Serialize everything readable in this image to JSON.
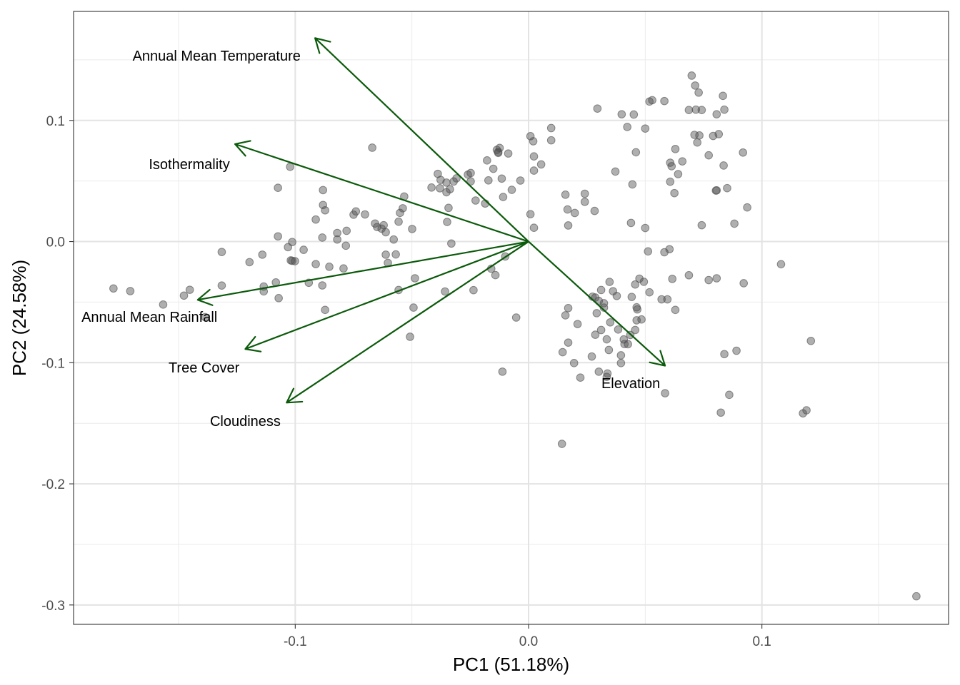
{
  "chart_data": {
    "type": "scatter",
    "title": "",
    "xlabel": "PC1 (51.18%)",
    "ylabel": "PC2 (24.58%)",
    "xlim": [
      -0.195,
      0.18
    ],
    "ylim": [
      -0.316,
      0.19
    ],
    "x_ticks": [
      {
        "value": -0.1,
        "label": "-0.1"
      },
      {
        "value": 0.0,
        "label": "0.0"
      },
      {
        "value": 0.1,
        "label": "0.1"
      }
    ],
    "y_ticks": [
      {
        "value": 0.1,
        "label": "0.1"
      },
      {
        "value": 0.0,
        "label": "0.0"
      },
      {
        "value": -0.1,
        "label": "-0.1"
      },
      {
        "value": -0.2,
        "label": "-0.2"
      },
      {
        "value": -0.3,
        "label": "-0.3"
      }
    ],
    "grid": true,
    "point_color": "#4d4d4d",
    "arrow_color": "#0b5a0b",
    "arrows": [
      {
        "name": "Annual Mean Temperature",
        "x": -0.0915,
        "y": 0.168,
        "label_x": -0.1337,
        "label_y": 0.1535
      },
      {
        "name": "Isothermality",
        "x": -0.1258,
        "y": 0.0805,
        "label_x": -0.1454,
        "label_y": 0.064
      },
      {
        "name": "Annual Mean Rainfall",
        "x": -0.1418,
        "y": -0.0481,
        "label_x": -0.1625,
        "label_y": -0.062
      },
      {
        "name": "Tree Cover",
        "x": -0.1214,
        "y": -0.0887,
        "label_x": -0.1391,
        "label_y": -0.104
      },
      {
        "name": "Cloudiness",
        "x": -0.1037,
        "y": -0.133,
        "label_x": -0.1214,
        "label_y": -0.148
      },
      {
        "name": "Elevation",
        "x": 0.0585,
        "y": -0.1025,
        "label_x": 0.0438,
        "label_y": -0.117
      }
    ],
    "points": [
      [
        -0.1779,
        -0.0387
      ],
      [
        -0.1707,
        -0.0409
      ],
      [
        -0.1566,
        -0.052
      ],
      [
        -0.1477,
        -0.0446
      ],
      [
        -0.1452,
        -0.0398
      ],
      [
        -0.1386,
        -0.0624
      ],
      [
        -0.1315,
        -0.0086
      ],
      [
        -0.1315,
        -0.0363
      ],
      [
        -0.1196,
        -0.017
      ],
      [
        -0.1141,
        -0.0108
      ],
      [
        -0.1135,
        -0.0371
      ],
      [
        -0.1135,
        -0.0411
      ],
      [
        -0.1083,
        -0.0337
      ],
      [
        -0.1074,
        0.0043
      ],
      [
        -0.1074,
        0.0444
      ],
      [
        -0.1071,
        -0.0467
      ],
      [
        -0.1031,
        -0.0046
      ],
      [
        -0.1022,
        0.0617
      ],
      [
        -0.1019,
        -0.0155
      ],
      [
        -0.1013,
        -0.0004
      ],
      [
        -0.1013,
        -0.0159
      ],
      [
        -0.1001,
        -0.0162
      ],
      [
        -0.0964,
        -0.0068
      ],
      [
        -0.0942,
        -0.034
      ],
      [
        -0.0912,
        -0.0186
      ],
      [
        -0.0912,
        0.0182
      ],
      [
        -0.0884,
        -0.0362
      ],
      [
        -0.0884,
        0.0033
      ],
      [
        -0.0881,
        0.0302
      ],
      [
        -0.0881,
        0.0425
      ],
      [
        -0.0872,
        -0.0564
      ],
      [
        -0.0872,
        0.0258
      ],
      [
        -0.0854,
        -0.0208
      ],
      [
        -0.082,
        0.0017
      ],
      [
        -0.082,
        0.0071
      ],
      [
        -0.0793,
        -0.0222
      ],
      [
        -0.0783,
        -0.0034
      ],
      [
        -0.078,
        0.0089
      ],
      [
        -0.075,
        0.0222
      ],
      [
        -0.074,
        0.0249
      ],
      [
        -0.0701,
        0.0224
      ],
      [
        -0.067,
        0.0775
      ],
      [
        -0.0658,
        0.0149
      ],
      [
        -0.0649,
        0.012
      ],
      [
        -0.063,
        0.0107
      ],
      [
        -0.0621,
        0.0135
      ],
      [
        -0.0612,
        -0.0108
      ],
      [
        -0.0612,
        0.0077
      ],
      [
        -0.0603,
        -0.0176
      ],
      [
        -0.0578,
        0.0017
      ],
      [
        -0.0569,
        -0.0106
      ],
      [
        -0.0557,
        0.0164
      ],
      [
        -0.0557,
        -0.04
      ],
      [
        -0.0551,
        0.0237
      ],
      [
        -0.0539,
        0.0275
      ],
      [
        -0.0533,
        0.0372
      ],
      [
        -0.0508,
        -0.0786
      ],
      [
        -0.0499,
        0.0104
      ],
      [
        -0.0493,
        -0.0545
      ],
      [
        -0.0487,
        -0.0303
      ],
      [
        -0.0416,
        0.0446
      ],
      [
        -0.0389,
        0.0559
      ],
      [
        -0.038,
        0.044
      ],
      [
        -0.0377,
        0.0509
      ],
      [
        -0.0358,
        -0.0412
      ],
      [
        -0.0352,
        0.0487
      ],
      [
        -0.0352,
        0.0407
      ],
      [
        -0.0349,
        0.0162
      ],
      [
        -0.0343,
        0.0278
      ],
      [
        -0.0337,
        0.0432
      ],
      [
        -0.0331,
        -0.0016
      ],
      [
        -0.0321,
        0.0496
      ],
      [
        -0.0309,
        0.0522
      ],
      [
        -0.026,
        0.0553
      ],
      [
        -0.0248,
        0.0566
      ],
      [
        -0.0248,
        0.0497
      ],
      [
        -0.0236,
        -0.0401
      ],
      [
        -0.0227,
        0.0339
      ],
      [
        -0.0186,
        0.0314
      ],
      [
        -0.0178,
        0.067
      ],
      [
        -0.0172,
        0.0505
      ],
      [
        -0.016,
        -0.0224
      ],
      [
        -0.0151,
        0.0601
      ],
      [
        -0.0142,
        -0.0277
      ],
      [
        -0.0136,
        0.0757
      ],
      [
        -0.013,
        0.074
      ],
      [
        -0.013,
        0.0732
      ],
      [
        -0.0124,
        0.0773
      ],
      [
        -0.0115,
        0.052
      ],
      [
        -0.0112,
        -0.1074
      ],
      [
        -0.0109,
        0.0368
      ],
      [
        -0.01,
        -0.0123
      ],
      [
        -0.0087,
        0.0727
      ],
      [
        -0.0072,
        0.0427
      ],
      [
        -0.0053,
        -0.0627
      ],
      [
        -0.0035,
        0.0504
      ],
      [
        0.0008,
        0.087
      ],
      [
        0.0008,
        0.0226
      ],
      [
        0.002,
        0.0828
      ],
      [
        0.0023,
        0.0114
      ],
      [
        0.0023,
        0.0703
      ],
      [
        0.0023,
        0.0586
      ],
      [
        0.0054,
        0.0637
      ],
      [
        0.0097,
        0.0836
      ],
      [
        0.0097,
        0.0937
      ],
      [
        0.0143,
        -0.167
      ],
      [
        0.0146,
        -0.0913
      ],
      [
        0.0158,
        -0.0609
      ],
      [
        0.0158,
        0.0387
      ],
      [
        0.0167,
        0.0265
      ],
      [
        0.017,
        0.0133
      ],
      [
        0.017,
        -0.0834
      ],
      [
        0.017,
        -0.0549
      ],
      [
        0.0195,
        -0.1003
      ],
      [
        0.0198,
        0.0236
      ],
      [
        0.021,
        -0.0681
      ],
      [
        0.0222,
        -0.1123
      ],
      [
        0.0241,
        0.0328
      ],
      [
        0.0241,
        0.0395
      ],
      [
        0.0271,
        -0.0949
      ],
      [
        0.0274,
        -0.0455
      ],
      [
        0.0283,
        0.0253
      ],
      [
        0.0286,
        -0.0769
      ],
      [
        0.0286,
        -0.0462
      ],
      [
        0.0292,
        -0.0591
      ],
      [
        0.0295,
        0.1098
      ],
      [
        0.0301,
        -0.049
      ],
      [
        0.0301,
        -0.1074
      ],
      [
        0.0311,
        -0.073
      ],
      [
        0.0311,
        -0.04
      ],
      [
        0.0323,
        -0.0509
      ],
      [
        0.0323,
        -0.0545
      ],
      [
        0.0335,
        -0.0807
      ],
      [
        0.0335,
        -0.1117
      ],
      [
        0.0338,
        -0.1089
      ],
      [
        0.0344,
        -0.0895
      ],
      [
        0.0347,
        -0.0333
      ],
      [
        0.035,
        -0.0667
      ],
      [
        0.0362,
        -0.041
      ],
      [
        0.0372,
        0.0578
      ],
      [
        0.0378,
        -0.0449
      ],
      [
        0.0384,
        -0.0726
      ],
      [
        0.0396,
        -0.1003
      ],
      [
        0.0396,
        -0.0939
      ],
      [
        0.0399,
        0.1051
      ],
      [
        0.0408,
        -0.0808
      ],
      [
        0.0411,
        -0.0846
      ],
      [
        0.0423,
        0.0946
      ],
      [
        0.0426,
        -0.0847
      ],
      [
        0.0436,
        -0.0771
      ],
      [
        0.0439,
        0.0154
      ],
      [
        0.0442,
        -0.0457
      ],
      [
        0.0445,
        0.0472
      ],
      [
        0.0451,
        0.1049
      ],
      [
        0.0457,
        -0.0354
      ],
      [
        0.0457,
        -0.073
      ],
      [
        0.046,
        0.0737
      ],
      [
        0.0463,
        -0.065
      ],
      [
        0.0463,
        -0.0543
      ],
      [
        0.0466,
        -0.056
      ],
      [
        0.0475,
        -0.0306
      ],
      [
        0.0484,
        -0.0643
      ],
      [
        0.0494,
        -0.0332
      ],
      [
        0.05,
        0.0933
      ],
      [
        0.05,
        0.0112
      ],
      [
        0.0512,
        -0.0081
      ],
      [
        0.0518,
        0.1156
      ],
      [
        0.0518,
        -0.0419
      ],
      [
        0.053,
        0.1167
      ],
      [
        0.057,
        -0.0477
      ],
      [
        0.0582,
        -0.0088
      ],
      [
        0.0582,
        0.116
      ],
      [
        0.0585,
        -0.1252
      ],
      [
        0.0595,
        -0.0477
      ],
      [
        0.0604,
        -0.0063
      ],
      [
        0.0607,
        0.0494
      ],
      [
        0.0607,
        0.0651
      ],
      [
        0.0613,
        0.0622
      ],
      [
        0.0616,
        -0.0308
      ],
      [
        0.0625,
        0.04
      ],
      [
        0.0629,
        -0.0564
      ],
      [
        0.0629,
        0.0764
      ],
      [
        0.0641,
        0.0557
      ],
      [
        0.0659,
        0.0662
      ],
      [
        0.0687,
        -0.0278
      ],
      [
        0.0687,
        0.1086
      ],
      [
        0.0699,
        0.137
      ],
      [
        0.0711,
        0.0881
      ],
      [
        0.0714,
        0.1288
      ],
      [
        0.0717,
        0.1089
      ],
      [
        0.0723,
        0.0818
      ],
      [
        0.0729,
        0.123
      ],
      [
        0.0732,
        0.0876
      ],
      [
        0.0742,
        0.0135
      ],
      [
        0.0742,
        0.1086
      ],
      [
        0.0772,
        -0.0318
      ],
      [
        0.0772,
        0.0712
      ],
      [
        0.0791,
        0.0872
      ],
      [
        0.0803,
        0.0421
      ],
      [
        0.0806,
        -0.0303
      ],
      [
        0.0806,
        0.1051
      ],
      [
        0.0806,
        0.0423
      ],
      [
        0.0815,
        0.0887
      ],
      [
        0.0824,
        -0.1412
      ],
      [
        0.0833,
        0.1203
      ],
      [
        0.0836,
        0.0628
      ],
      [
        0.0839,
        -0.0929
      ],
      [
        0.0839,
        0.1089
      ],
      [
        0.0851,
        0.0441
      ],
      [
        0.086,
        -0.1265
      ],
      [
        0.0882,
        0.0148
      ],
      [
        0.0891,
        -0.0901
      ],
      [
        0.0919,
        0.0735
      ],
      [
        0.0922,
        -0.0344
      ],
      [
        0.0937,
        0.0282
      ],
      [
        0.1082,
        -0.0187
      ],
      [
        0.1176,
        -0.1418
      ],
      [
        0.1191,
        -0.1393
      ],
      [
        0.121,
        -0.082
      ],
      [
        0.1662,
        -0.2928
      ]
    ]
  }
}
